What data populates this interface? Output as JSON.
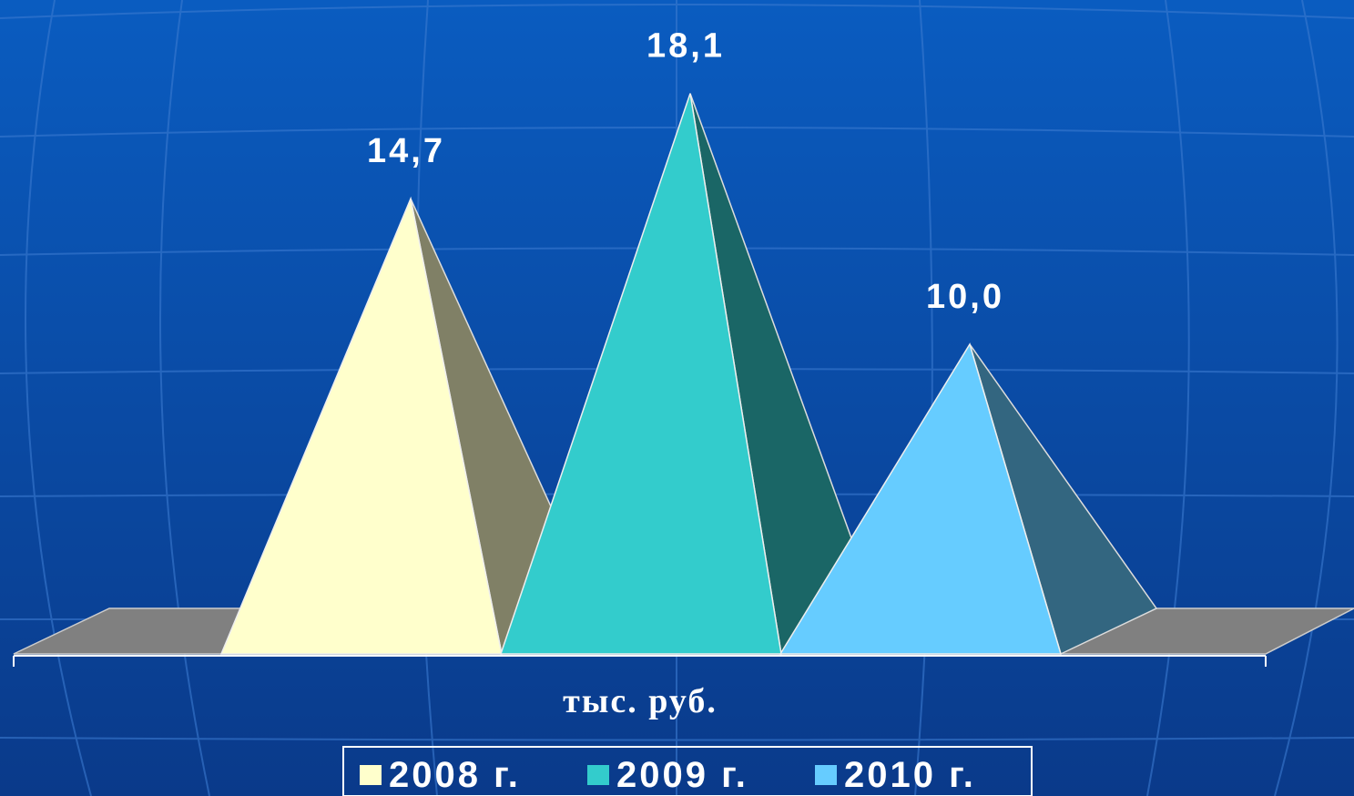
{
  "chart_data": {
    "type": "pyramid",
    "categories": [
      "тыс. руб."
    ],
    "series": [
      {
        "name": "2008 г.",
        "color": "#ffffcc",
        "values": [
          14.7
        ],
        "value_labels": [
          "14,7"
        ]
      },
      {
        "name": "2009 г.",
        "color": "#33cccc",
        "values": [
          18.1
        ],
        "value_labels": [
          "18,1"
        ]
      },
      {
        "name": "2010 г.",
        "color": "#66ccff",
        "values": [
          10.0
        ],
        "value_labels": [
          "10,0"
        ]
      }
    ],
    "legend": "bottom"
  }
}
